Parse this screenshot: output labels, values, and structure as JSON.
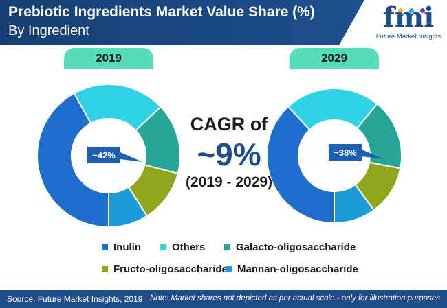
{
  "header": {
    "title": "Prebiotic Ingredients Market Value Share (%)",
    "subtitle": "By Ingredient"
  },
  "logo": {
    "letters": "fmi",
    "name": "Future Market Insights",
    "dot_colors": [
      "#e9463f",
      "#f6b51c",
      "#2aa8e0",
      "#6c3a9a"
    ]
  },
  "center": {
    "cagr_label": "CAGR of",
    "cagr_value": "~9%",
    "cagr_period": "(2019 - 2029)"
  },
  "footer": {
    "source": "Source: Future Market Insights, 2019",
    "note": "Note: Market shares not depicted as per actual scale - only for illustration purposes"
  },
  "chart_data": [
    {
      "type": "pie",
      "title": "2019",
      "categories": [
        "Inulin",
        "Others",
        "Galacto-oligosaccharide",
        "Fructo-oligosaccharide",
        "Mannan-oligosaccharide"
      ],
      "values": [
        42,
        21,
        16,
        12,
        9
      ],
      "colors": [
        "#1e6fcd",
        "#2fd2e4",
        "#27a596",
        "#8fa61d",
        "#1c9bd8"
      ],
      "callout": "~42%",
      "legend": "bottom"
    },
    {
      "type": "pie",
      "title": "2029",
      "categories": [
        "Inulin",
        "Others",
        "Galacto-oligosaccharide",
        "Fructo-oligosaccharide",
        "Mannan-oligosaccharide"
      ],
      "values": [
        38,
        23,
        17,
        12,
        10
      ],
      "colors": [
        "#1e6fcd",
        "#2fd2e4",
        "#27a596",
        "#8fa61d",
        "#1c9bd8"
      ],
      "callout": "~38%",
      "legend": "bottom"
    }
  ]
}
